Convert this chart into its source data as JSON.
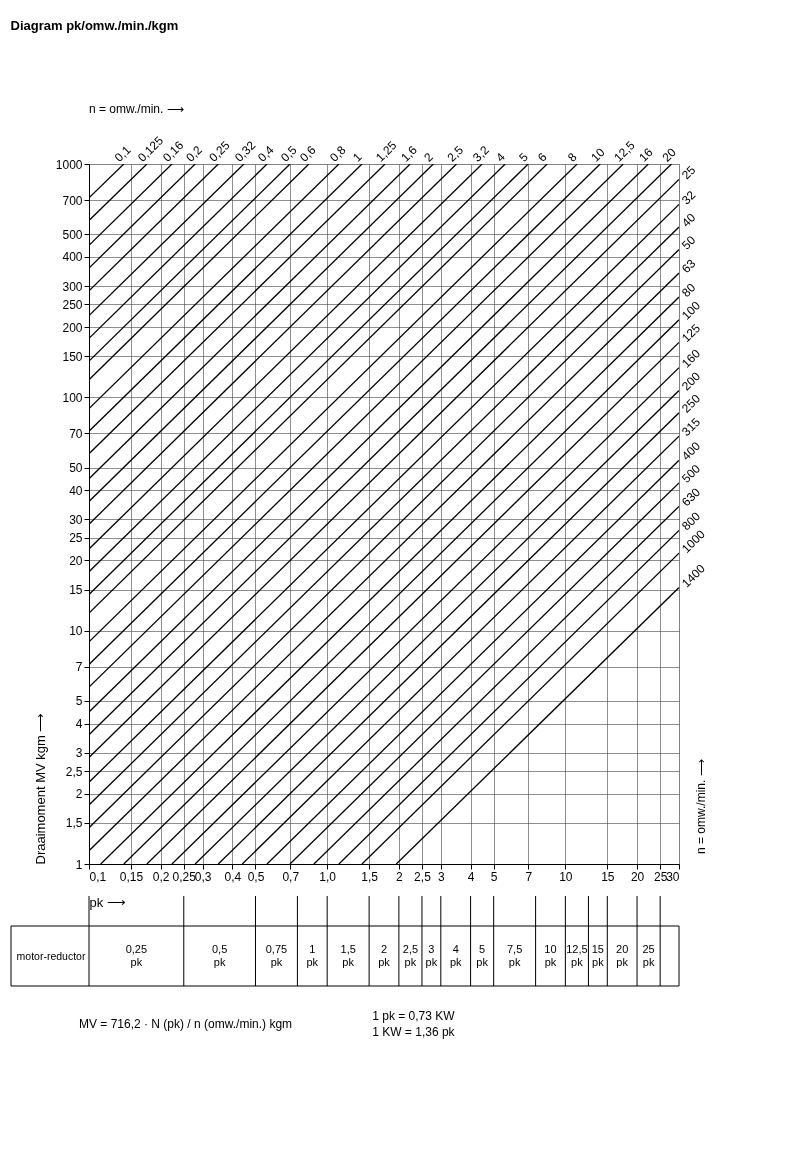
{
  "chart_data": {
    "type": "line",
    "title": "Diagram pk/omw./min./kgm",
    "xlabel": "pk ⟶",
    "ylabel": "Draaimoment MV kgm ⟶",
    "log": "xy",
    "grid": true,
    "legend": false,
    "xlim": [
      0.1,
      30
    ],
    "ylim": [
      1,
      1000
    ],
    "xticks": [
      {
        "value": 0.1,
        "label": "0,1"
      },
      {
        "value": 0.15,
        "label": "0,15"
      },
      {
        "value": 0.2,
        "label": "0,2"
      },
      {
        "value": 0.25,
        "label": "0,25"
      },
      {
        "value": 0.3,
        "label": "0,3"
      },
      {
        "value": 0.4,
        "label": "0,4"
      },
      {
        "value": 0.5,
        "label": "0,5"
      },
      {
        "value": 0.7,
        "label": "0,7"
      },
      {
        "value": 1,
        "label": "1,0"
      },
      {
        "value": 1.5,
        "label": "1,5"
      },
      2,
      {
        "value": 2.5,
        "label": "2,5"
      },
      3,
      4,
      5,
      7,
      10,
      15,
      20,
      25,
      30
    ],
    "yticks": [
      1,
      {
        "value": 1.5,
        "label": "1,5"
      },
      2,
      {
        "value": 2.5,
        "label": "2,5"
      },
      3,
      4,
      5,
      7,
      10,
      15,
      20,
      25,
      30,
      40,
      50,
      70,
      100,
      150,
      200,
      250,
      300,
      400,
      500,
      700,
      1000
    ],
    "series": [
      {
        "name": "0,1",
        "color": "#000000",
        "x": [
          0.1,
          0.14
        ],
        "values": [
          716,
          1000
        ]
      },
      {
        "name": "0,125",
        "color": "#000000",
        "x": [
          0.1,
          0.175
        ],
        "values": [
          573,
          1000
        ]
      },
      {
        "name": "0,16",
        "color": "#000000",
        "x": [
          0.1,
          0.223
        ],
        "values": [
          448,
          1000
        ]
      },
      {
        "name": "0,2",
        "color": "#000000",
        "x": [
          0.1,
          0.279
        ],
        "values": [
          358,
          1000
        ]
      },
      {
        "name": "0,25",
        "color": "#000000",
        "x": [
          0.1,
          0.349
        ],
        "values": [
          286,
          1000
        ]
      },
      {
        "name": "0,32",
        "color": "#000000",
        "x": [
          0.1,
          0.447
        ],
        "values": [
          224,
          1000
        ]
      },
      {
        "name": "0,4",
        "color": "#000000",
        "x": [
          0.1,
          0.559
        ],
        "values": [
          179,
          1000
        ]
      },
      {
        "name": "0,5",
        "color": "#000000",
        "x": [
          0.1,
          0.698
        ],
        "values": [
          143,
          1000
        ]
      },
      {
        "name": "0,6",
        "color": "#000000",
        "x": [
          0.1,
          0.838
        ],
        "values": [
          119,
          1000
        ]
      },
      {
        "name": "0,8",
        "color": "#000000",
        "x": [
          0.1,
          1.12
        ],
        "values": [
          89.5,
          1000
        ]
      },
      {
        "name": "1",
        "color": "#000000",
        "x": [
          0.1,
          1.4
        ],
        "values": [
          71.6,
          1000
        ]
      },
      {
        "name": "1,25",
        "color": "#000000",
        "x": [
          0.1,
          1.75
        ],
        "values": [
          57.3,
          1000
        ]
      },
      {
        "name": "1,6",
        "color": "#000000",
        "x": [
          0.1,
          2.23
        ],
        "values": [
          44.8,
          1000
        ]
      },
      {
        "name": "2",
        "color": "#000000",
        "x": [
          0.1,
          2.79
        ],
        "values": [
          35.8,
          1000
        ]
      },
      {
        "name": "2,5",
        "color": "#000000",
        "x": [
          0.1,
          3.49
        ],
        "values": [
          28.6,
          1000
        ]
      },
      {
        "name": "3,2",
        "color": "#000000",
        "x": [
          0.1,
          4.47
        ],
        "values": [
          22.4,
          1000
        ]
      },
      {
        "name": "4",
        "color": "#000000",
        "x": [
          0.1,
          5.59
        ],
        "values": [
          17.9,
          1000
        ]
      },
      {
        "name": "5",
        "color": "#000000",
        "x": [
          0.1,
          6.98
        ],
        "values": [
          14.3,
          1000
        ]
      },
      {
        "name": "6",
        "color": "#000000",
        "x": [
          0.1,
          8.38
        ],
        "values": [
          11.9,
          1000
        ]
      },
      {
        "name": "8",
        "color": "#000000",
        "x": [
          0.1,
          11.2
        ],
        "values": [
          8.95,
          1000
        ]
      },
      {
        "name": "10",
        "color": "#000000",
        "x": [
          0.1,
          14.0
        ],
        "values": [
          7.16,
          1000
        ]
      },
      {
        "name": "12,5",
        "color": "#000000",
        "x": [
          0.1,
          17.5
        ],
        "values": [
          5.73,
          1000
        ]
      },
      {
        "name": "16",
        "color": "#000000",
        "x": [
          0.1,
          22.3
        ],
        "values": [
          4.48,
          1000
        ]
      },
      {
        "name": "20",
        "color": "#000000",
        "x": [
          0.1,
          27.9
        ],
        "values": [
          3.58,
          1000
        ]
      },
      {
        "name": "25",
        "color": "#000000",
        "x": [
          0.1,
          30
        ],
        "values": [
          2.86,
          859
        ]
      },
      {
        "name": "32",
        "color": "#000000",
        "x": [
          0.1,
          30
        ],
        "values": [
          2.24,
          671
        ]
      },
      {
        "name": "40",
        "color": "#000000",
        "x": [
          0.1,
          30
        ],
        "values": [
          1.79,
          537
        ]
      },
      {
        "name": "50",
        "color": "#000000",
        "x": [
          0.1,
          30
        ],
        "values": [
          1.43,
          430
        ]
      },
      {
        "name": "63",
        "color": "#000000",
        "x": [
          0.1,
          30
        ],
        "values": [
          1.14,
          341
        ]
      },
      {
        "name": "80",
        "color": "#000000",
        "x": [
          0.112,
          30
        ],
        "values": [
          1,
          269
        ]
      },
      {
        "name": "100",
        "color": "#000000",
        "x": [
          0.14,
          30
        ],
        "values": [
          1,
          215
        ]
      },
      {
        "name": "125",
        "color": "#000000",
        "x": [
          0.175,
          30
        ],
        "values": [
          1,
          172
        ]
      },
      {
        "name": "160",
        "color": "#000000",
        "x": [
          0.223,
          30
        ],
        "values": [
          1,
          134
        ]
      },
      {
        "name": "200",
        "color": "#000000",
        "x": [
          0.279,
          30
        ],
        "values": [
          1,
          107
        ]
      },
      {
        "name": "250",
        "color": "#000000",
        "x": [
          0.349,
          30
        ],
        "values": [
          1,
          85.9
        ]
      },
      {
        "name": "315",
        "color": "#000000",
        "x": [
          0.44,
          30
        ],
        "values": [
          1,
          68.2
        ]
      },
      {
        "name": "400",
        "color": "#000000",
        "x": [
          0.559,
          30
        ],
        "values": [
          1,
          53.7
        ]
      },
      {
        "name": "500",
        "color": "#000000",
        "x": [
          0.698,
          30
        ],
        "values": [
          1,
          43.0
        ]
      },
      {
        "name": "630",
        "color": "#000000",
        "x": [
          0.88,
          30
        ],
        "values": [
          1,
          34.1
        ]
      },
      {
        "name": "800",
        "color": "#000000",
        "x": [
          1.12,
          30
        ],
        "values": [
          1,
          26.9
        ]
      },
      {
        "name": "1000",
        "color": "#000000",
        "x": [
          1.4,
          30
        ],
        "values": [
          1,
          21.5
        ]
      },
      {
        "name": "1400",
        "color": "#000000",
        "x": [
          1.95,
          30
        ],
        "values": [
          1,
          15.3
        ]
      }
    ],
    "annotations": [
      "n = omw./min. ⟶",
      "n = omw./min. ⟶",
      "motor-reductor",
      "MV = 716,2 · N (pk) / n (omw./min.) kgm",
      "1 pk  = 0,73 KW",
      "1 KW = 1,36 pk",
      "0,25 pk",
      "0,5 pk",
      "0,75 pk",
      "1 pk",
      "1,5 pk",
      "2 pk",
      "2,5 pk",
      "3 pk",
      "4 pk",
      "5 pk",
      "7,5 pk",
      "10 pk",
      "12,5 pk",
      "15 pk",
      "20 pk",
      "25 pk"
    ]
  }
}
